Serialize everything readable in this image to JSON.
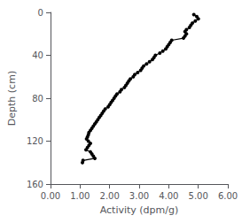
{
  "chart_data": {
    "type": "line",
    "x": [
      4.85,
      4.95,
      5.0,
      4.9,
      4.8,
      4.75,
      4.7,
      4.6,
      4.55,
      4.6,
      4.55,
      4.5,
      4.1,
      4.05,
      4.0,
      3.95,
      3.9,
      3.8,
      3.7,
      3.55,
      3.5,
      3.45,
      3.35,
      3.25,
      3.15,
      3.1,
      3.05,
      2.95,
      2.85,
      2.8,
      2.7,
      2.65,
      2.6,
      2.55,
      2.5,
      2.4,
      2.35,
      2.25,
      2.2,
      2.15,
      2.1,
      2.05,
      2.0,
      1.95,
      1.85,
      1.8,
      1.75,
      1.7,
      1.65,
      1.6,
      1.55,
      1.5,
      1.45,
      1.4,
      1.35,
      1.3,
      1.28,
      1.25,
      1.22,
      1.28,
      1.35,
      1.3,
      1.25,
      1.2,
      1.35,
      1.4,
      1.45,
      1.5,
      1.1,
      1.08
    ],
    "values": [
      2,
      4,
      6,
      8,
      10,
      12,
      14,
      16,
      18,
      20,
      22,
      24,
      26,
      28,
      30,
      32,
      34,
      36,
      38,
      40,
      42,
      44,
      46,
      48,
      50,
      52,
      54,
      56,
      58,
      60,
      62,
      64,
      66,
      68,
      70,
      72,
      74,
      76,
      78,
      80,
      82,
      84,
      86,
      88,
      90,
      92,
      94,
      96,
      98,
      100,
      102,
      104,
      106,
      108,
      110,
      112,
      114,
      116,
      118,
      120,
      122,
      124,
      126,
      128,
      130,
      132,
      134,
      136,
      138,
      140
    ],
    "xlabel": "Activity (dpm/g)",
    "ylabel": "Depth (cm)",
    "xlim": [
      0.0,
      6.0
    ],
    "xticks": [
      {
        "value": 0,
        "label": "0.00"
      },
      {
        "value": 1,
        "label": "1.00"
      },
      {
        "value": 2,
        "label": "2.00"
      },
      {
        "value": 3,
        "label": "3.00"
      },
      {
        "value": 4,
        "label": "4.00"
      },
      {
        "value": 5,
        "label": "5.00"
      },
      {
        "value": 6,
        "label": "6.00"
      }
    ],
    "ylim": [
      160,
      0
    ],
    "yticks": [
      0,
      40,
      80,
      120,
      160
    ],
    "color": "#000000",
    "marker": "circle",
    "grid": false
  }
}
